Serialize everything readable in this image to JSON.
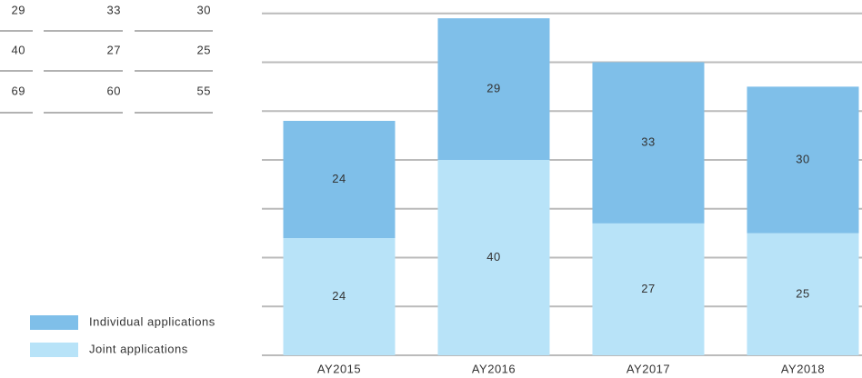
{
  "table": {
    "rows": [
      [
        29,
        33,
        30
      ],
      [
        40,
        27,
        25
      ],
      [
        69,
        60,
        55
      ]
    ]
  },
  "chart_data": {
    "type": "stacked_bar",
    "categories": [
      "AY2015",
      "AY2016",
      "AY2017",
      "AY2018"
    ],
    "series": [
      {
        "name": "Joint applications",
        "color": "#b8e3f8",
        "values": [
          24,
          40,
          27,
          25
        ]
      },
      {
        "name": "Individual applications",
        "color": "#7fbfe9",
        "values": [
          24,
          29,
          33,
          30
        ]
      }
    ],
    "ylim": [
      0,
      70
    ],
    "yticks": [
      0,
      10,
      20,
      30,
      40,
      50,
      60,
      70
    ],
    "grid": true
  }
}
